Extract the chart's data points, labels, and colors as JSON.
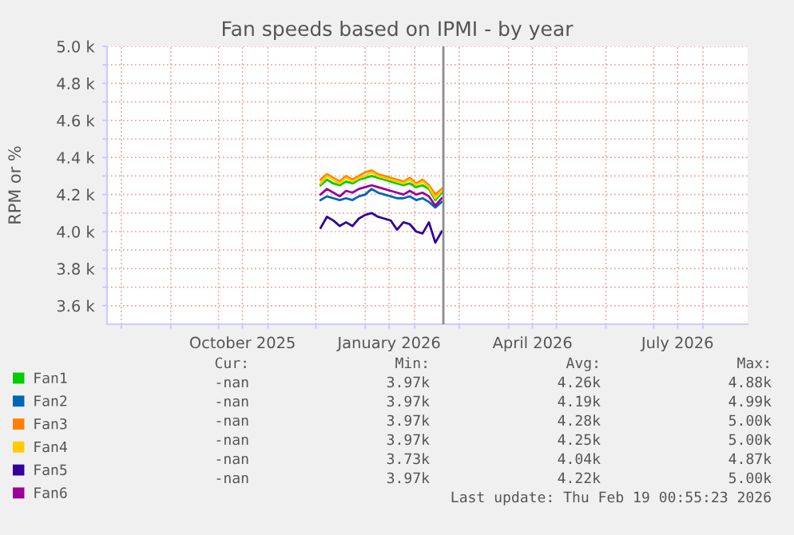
{
  "chart_data": {
    "type": "line",
    "title": "Fan speeds based on IPMI - by year",
    "ylabel": "RPM or %",
    "x": [
      "2025-12-04",
      "2025-12-08",
      "2025-12-12",
      "2025-12-16",
      "2025-12-20",
      "2025-12-24",
      "2025-12-28",
      "2026-01-01",
      "2026-01-05",
      "2026-01-09",
      "2026-01-13",
      "2026-01-17",
      "2026-01-21",
      "2026-01-25",
      "2026-01-29",
      "2026-02-02",
      "2026-02-06",
      "2026-02-10",
      "2026-02-14",
      "2026-02-18"
    ],
    "series": [
      {
        "name": "Fan1",
        "color": "#00cc00",
        "values": [
          4250,
          4280,
          4260,
          4250,
          4270,
          4260,
          4280,
          4290,
          4300,
          4290,
          4280,
          4270,
          4260,
          4250,
          4260,
          4240,
          4250,
          4230,
          4170,
          4210
        ]
      },
      {
        "name": "Fan2",
        "color": "#0066b3",
        "values": [
          4170,
          4190,
          4180,
          4170,
          4180,
          4170,
          4190,
          4200,
          4230,
          4210,
          4200,
          4190,
          4180,
          4180,
          4190,
          4170,
          4180,
          4160,
          4130,
          4160
        ]
      },
      {
        "name": "Fan3",
        "color": "#ff8000",
        "values": [
          4280,
          4310,
          4290,
          4270,
          4300,
          4280,
          4300,
          4320,
          4330,
          4310,
          4300,
          4290,
          4280,
          4270,
          4290,
          4260,
          4280,
          4250,
          4200,
          4230
        ]
      },
      {
        "name": "Fan4",
        "color": "#ffcc00",
        "values": [
          4260,
          4300,
          4280,
          4260,
          4290,
          4270,
          4290,
          4300,
          4320,
          4300,
          4290,
          4280,
          4270,
          4260,
          4280,
          4250,
          4270,
          4240,
          4180,
          4220
        ]
      },
      {
        "name": "Fan5",
        "color": "#330099",
        "values": [
          4020,
          4080,
          4060,
          4030,
          4050,
          4030,
          4070,
          4090,
          4100,
          4080,
          4070,
          4060,
          4010,
          4050,
          4040,
          4000,
          3990,
          4050,
          3940,
          4000
        ]
      },
      {
        "name": "Fan6",
        "color": "#990099",
        "values": [
          4200,
          4230,
          4210,
          4190,
          4220,
          4210,
          4230,
          4240,
          4250,
          4240,
          4230,
          4220,
          4210,
          4200,
          4220,
          4200,
          4210,
          4190,
          4140,
          4180
        ]
      }
    ],
    "xlim": [
      "2025-07-23",
      "2026-08-29"
    ],
    "xticks": [
      {
        "value": "2025-08-01",
        "label": null
      },
      {
        "value": "2025-09-01",
        "label": null
      },
      {
        "value": "2025-10-01",
        "label": null
      },
      {
        "value": "2025-10-16",
        "label": "October 2025"
      },
      {
        "value": "2025-11-01",
        "label": null
      },
      {
        "value": "2025-12-01",
        "label": null
      },
      {
        "value": "2026-01-01",
        "label": null
      },
      {
        "value": "2026-01-16",
        "label": "January 2026"
      },
      {
        "value": "2026-02-01",
        "label": null
      },
      {
        "value": "2026-03-01",
        "label": null
      },
      {
        "value": "2026-04-01",
        "label": null
      },
      {
        "value": "2026-04-16",
        "label": "April 2026"
      },
      {
        "value": "2026-05-01",
        "label": null
      },
      {
        "value": "2026-06-01",
        "label": null
      },
      {
        "value": "2026-07-01",
        "label": null
      },
      {
        "value": "2026-07-16",
        "label": "July 2026"
      },
      {
        "value": "2026-08-01",
        "label": null
      }
    ],
    "ylim": [
      3500,
      5000
    ],
    "yticks": [
      {
        "value": 3600,
        "label": "3.6 k"
      },
      {
        "value": 3700,
        "label": null
      },
      {
        "value": 3800,
        "label": "3.8 k"
      },
      {
        "value": 3900,
        "label": null
      },
      {
        "value": 4000,
        "label": "4.0 k"
      },
      {
        "value": 4100,
        "label": null
      },
      {
        "value": 4200,
        "label": "4.2 k"
      },
      {
        "value": 4300,
        "label": null
      },
      {
        "value": 4400,
        "label": "4.4 k"
      },
      {
        "value": 4500,
        "label": null
      },
      {
        "value": 4600,
        "label": "4.6 k"
      },
      {
        "value": 4700,
        "label": null
      },
      {
        "value": 4800,
        "label": "4.8 k"
      },
      {
        "value": 4900,
        "label": null
      },
      {
        "value": 5000,
        "label": "5.0 k"
      }
    ],
    "grid": true,
    "legend": "bottom left",
    "ref_lines": [
      {
        "axis": "x",
        "value": "2026-02-19T00:55",
        "color": "#8c8c8c"
      }
    ],
    "annotations": [
      "Cur:",
      "Min:",
      "Avg:",
      "Max:",
      "-nan",
      "3.97k",
      "4.26k",
      "4.88k",
      "-nan",
      "3.97k",
      "4.19k",
      "4.99k",
      "-nan",
      "3.97k",
      "4.28k",
      "5.00k",
      "-nan",
      "3.97k",
      "4.25k",
      "5.00k",
      "-nan",
      "3.73k",
      "4.04k",
      "4.87k",
      "-nan",
      "3.97k",
      "4.22k",
      "5.00k",
      "Last update: Thu Feb 19 00:55:23 2026"
    ]
  }
}
